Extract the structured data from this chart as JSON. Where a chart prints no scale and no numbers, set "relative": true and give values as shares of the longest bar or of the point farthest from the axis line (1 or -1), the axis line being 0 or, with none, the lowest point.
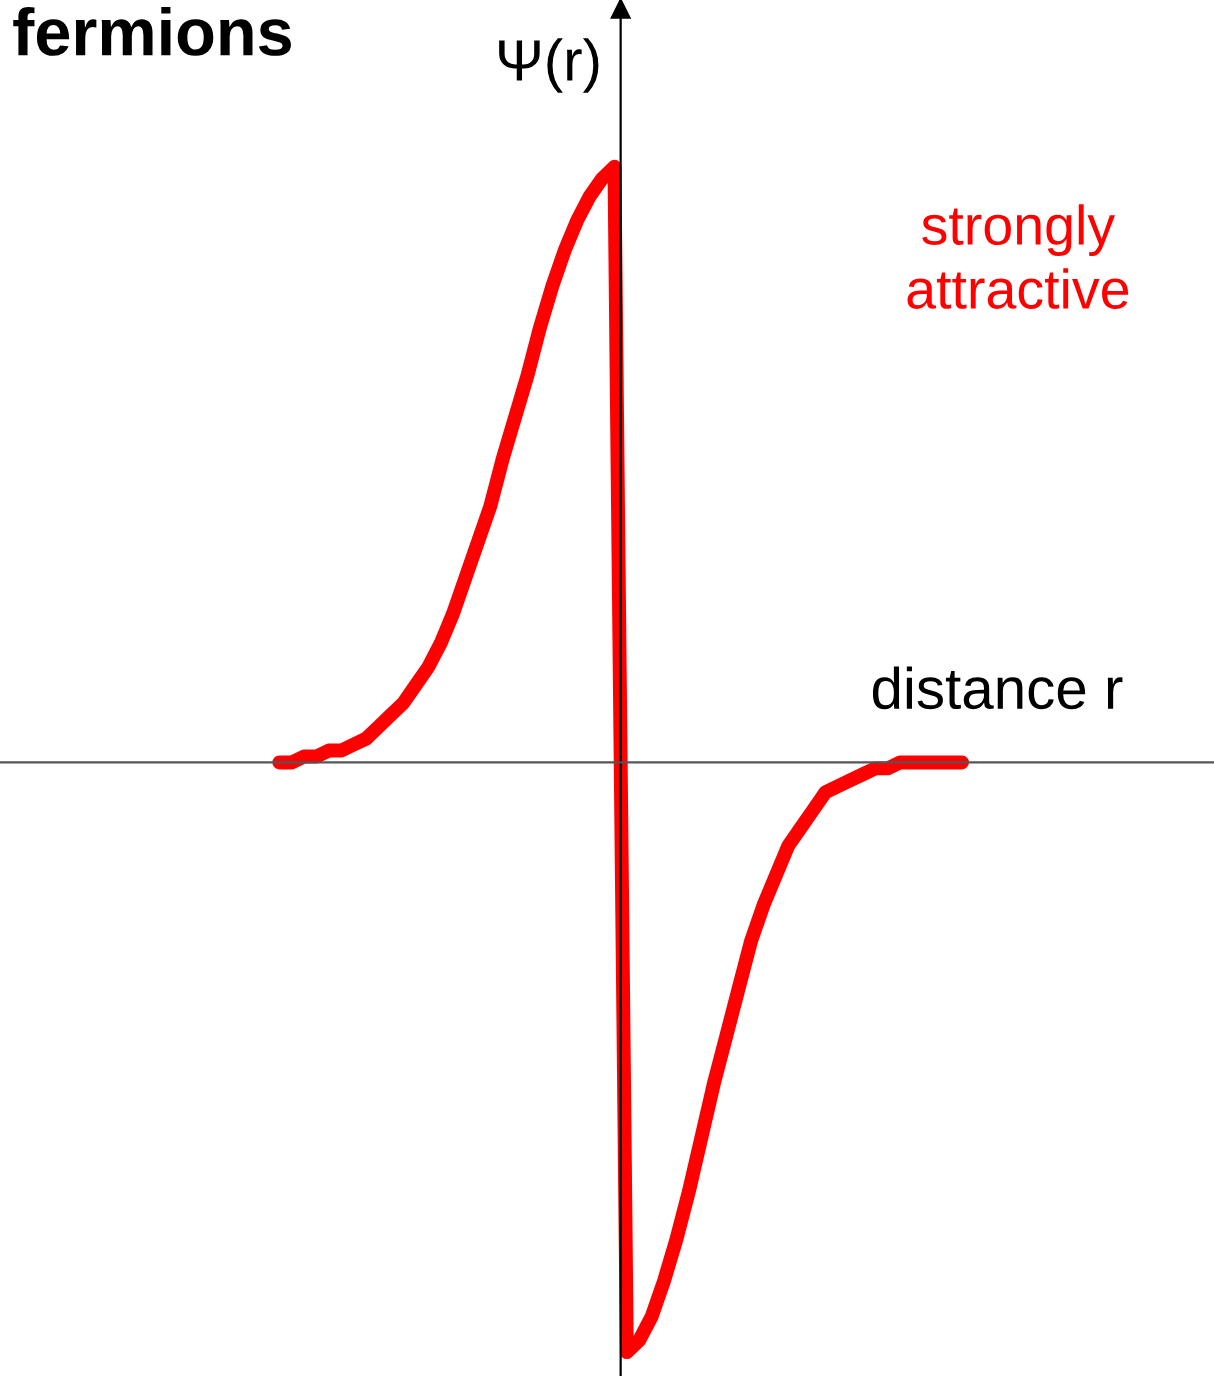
{
  "chart_data": {
    "type": "line",
    "title": "fermions",
    "ylabel": "Ψ(r)",
    "xlabel": "distance r",
    "relative": true,
    "annotations": [
      "strongly attractive"
    ],
    "categories": [
      null,
      null,
      null,
      null,
      null,
      null,
      null,
      null,
      null,
      null,
      null,
      null,
      null,
      null,
      null,
      null,
      null,
      null,
      null,
      null,
      null,
      null,
      null,
      null,
      null,
      null,
      null,
      null,
      null,
      null,
      null,
      null,
      null,
      null,
      null,
      null,
      null,
      null,
      null,
      null,
      null,
      null,
      null,
      null,
      null,
      null,
      null,
      null,
      null,
      null,
      null,
      null,
      null,
      null,
      null,
      null
    ],
    "series": [
      {
        "color": "#ff0000",
        "values": [
          0,
          0,
          0.01,
          0.01,
          0.02,
          0.02,
          0.03,
          0.04,
          0.06,
          0.08,
          0.1,
          0.13,
          0.16,
          0.2,
          0.25,
          0.31,
          0.37,
          0.43,
          0.51,
          0.58,
          0.65,
          0.73,
          0.8,
          0.86,
          0.91,
          0.95,
          0.98,
          1,
          -0.99,
          -0.97,
          -0.93,
          -0.87,
          -0.8,
          -0.72,
          -0.63,
          -0.54,
          -0.46,
          -0.38,
          -0.3,
          -0.24,
          -0.19,
          -0.14,
          -0.11,
          -0.08,
          -0.05,
          -0.04,
          -0.03,
          -0.02,
          -0.01,
          -0.01,
          0,
          0,
          0,
          0,
          0,
          0
        ]
      }
    ],
    "legend": false,
    "marker": "none",
    "line_style": "solid"
  }
}
